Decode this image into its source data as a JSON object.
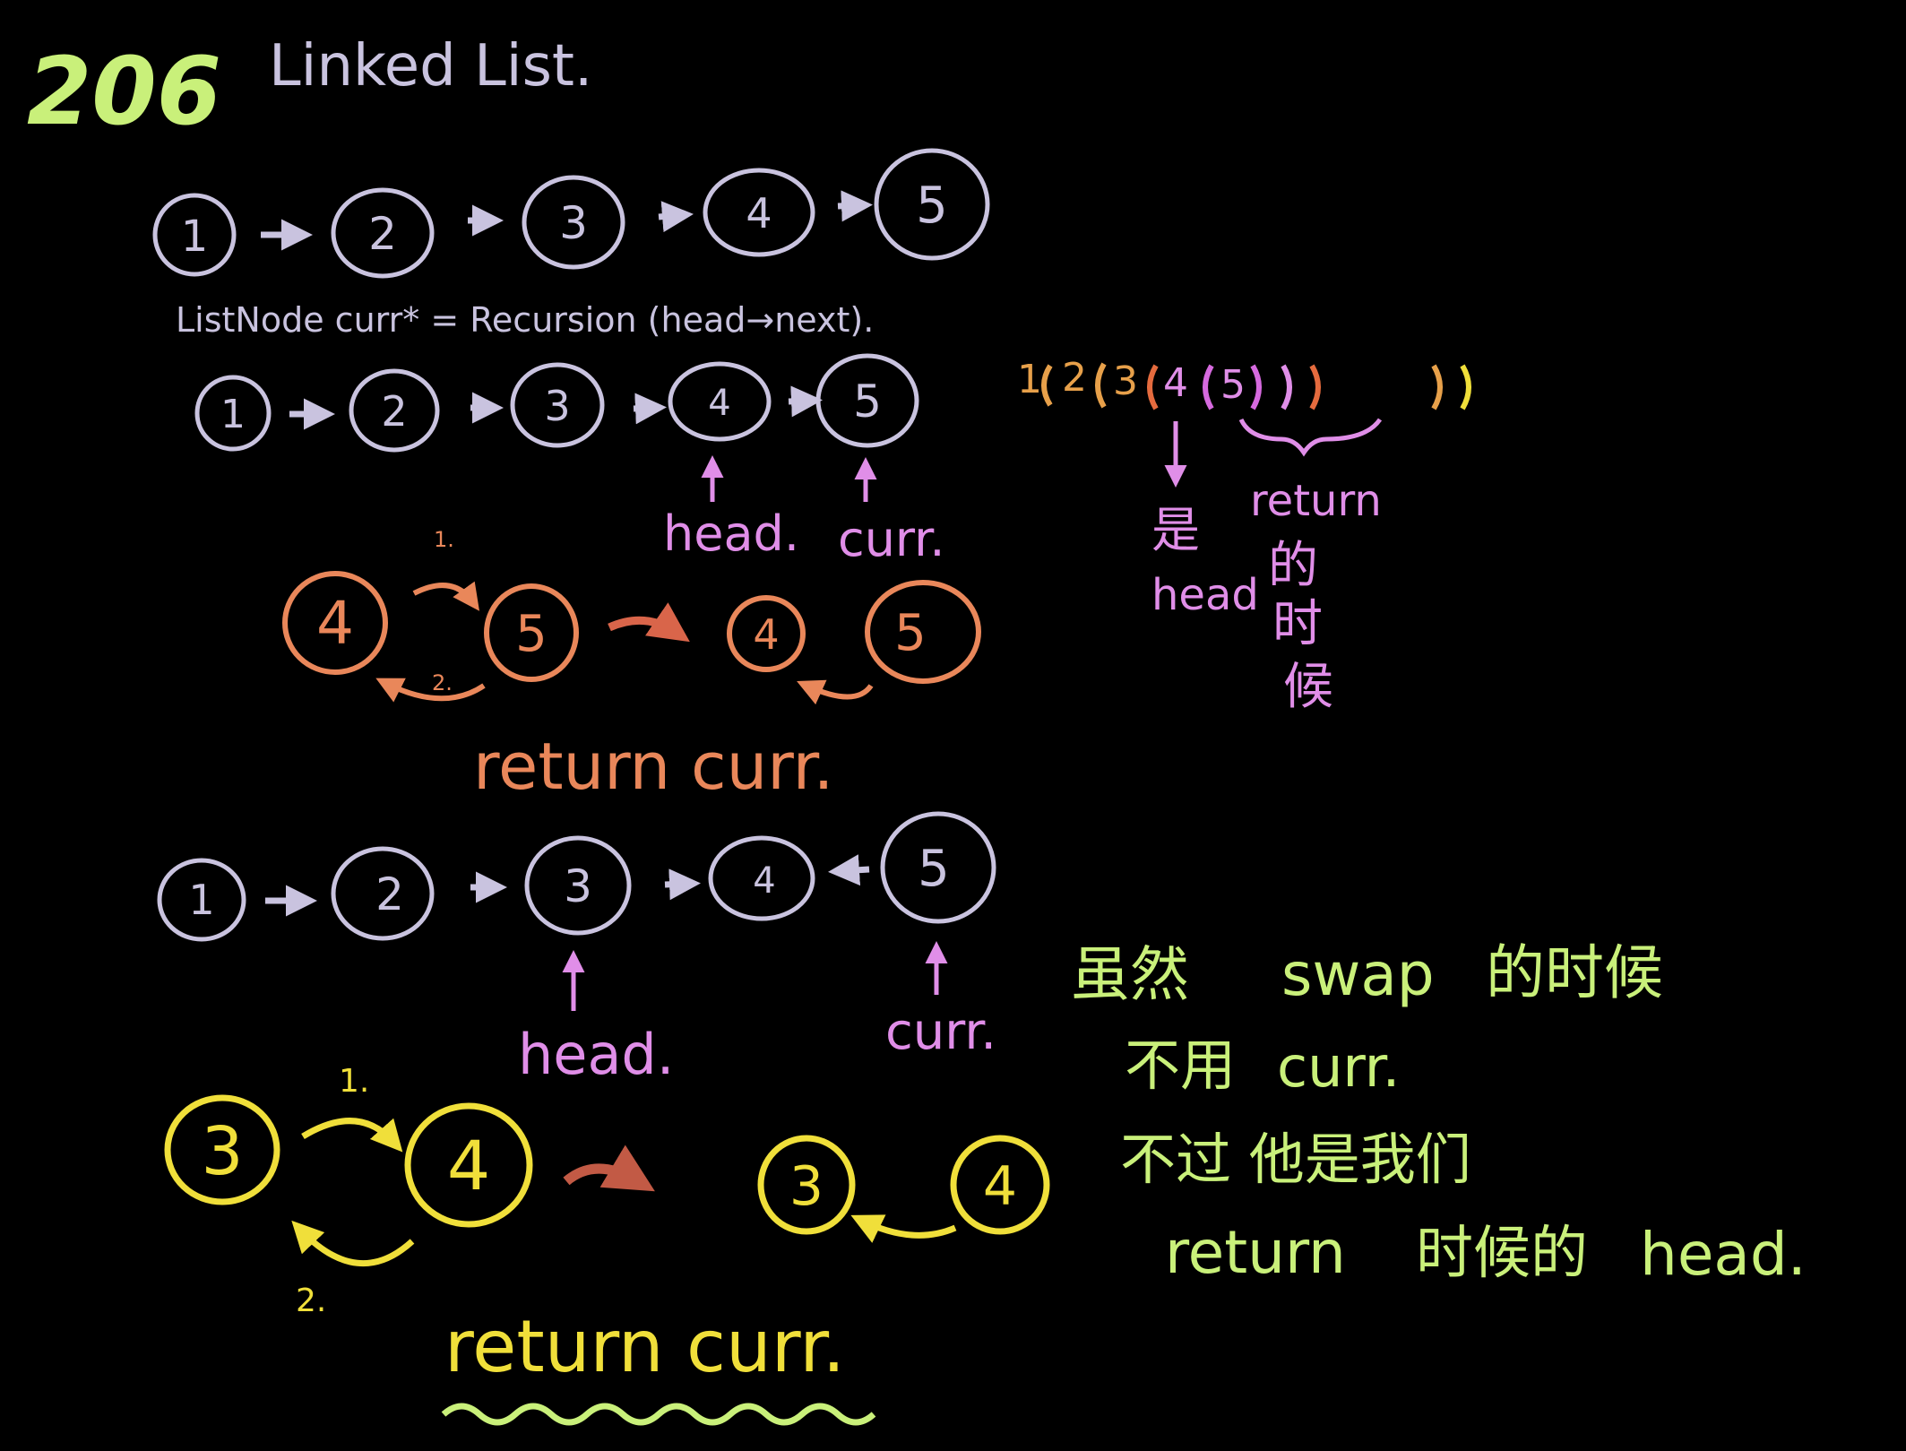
{
  "header": {
    "number": "206",
    "title": "Linked List."
  },
  "colors": {
    "background": "#000000",
    "lavender": "#c9c3df",
    "pink": "#e08ee8",
    "orange": "#e9875a",
    "salmon": "#d9654a",
    "yellow": "#f0df3a",
    "green": "#c9f07a",
    "violet": "#c98ff0"
  },
  "lists": {
    "row1": [
      "1",
      "2",
      "3",
      "4",
      "5"
    ],
    "row2": [
      "1",
      "2",
      "3",
      "4",
      "5"
    ],
    "row3": [
      "1",
      "2",
      "3",
      "4",
      "5"
    ]
  },
  "code_line": "ListNode curr* = Recursion (head→next).",
  "pointers": {
    "head": "head.",
    "curr": "curr."
  },
  "swap_orange": {
    "nodes": [
      "4",
      "5",
      "4",
      "5"
    ],
    "step1": "1.",
    "step2": "2.",
    "return_text": "return curr."
  },
  "swap_yellow": {
    "nodes": [
      "3",
      "4",
      "3",
      "4"
    ],
    "step1": "1.",
    "step2": "2.",
    "return_text": "return curr."
  },
  "nesting": {
    "digits": [
      "1",
      "2",
      "3",
      "4",
      "5"
    ],
    "paren_colors": [
      "#e7a04a",
      "#e7a04a",
      "#e56b3e",
      "#e56b3e",
      "#d66adf",
      "#d66adf",
      "#e7a04a",
      "#f0df3a"
    ],
    "is_char": "是",
    "is_word": "head",
    "return_word": "return",
    "when_chars": [
      "的",
      "时",
      "候"
    ]
  },
  "note": {
    "line1_a": "虽然",
    "line1_b": "swap",
    "line1_c": "的时候",
    "line2_a": "不用",
    "line2_b": "curr.",
    "line3": "不过 他是我们",
    "line4_a": "return",
    "line4_b": "时候的",
    "line4_c": "head."
  }
}
